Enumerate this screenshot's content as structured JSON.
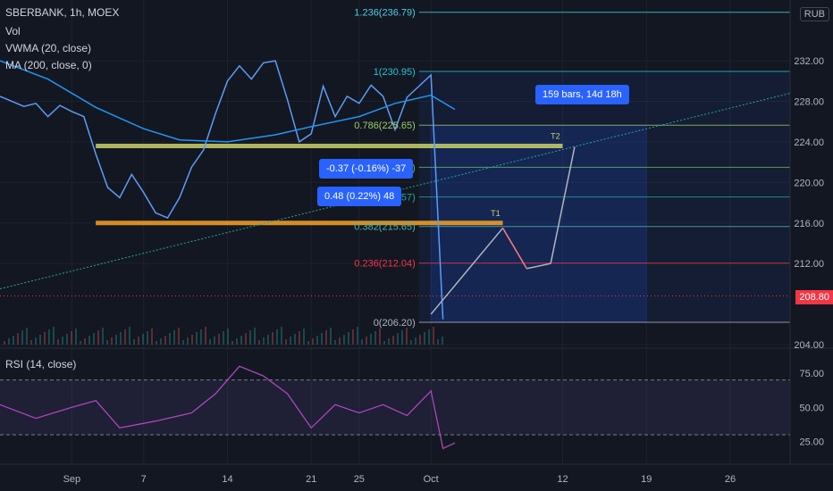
{
  "header": {
    "symbol_line": "SBERBANK, 1h, MOEX",
    "volume_label": "Vol",
    "vwma_label": "VWMA (20, close)",
    "ma_label": "MA (200, close, 0)",
    "currency": "RUB"
  },
  "annotations": {
    "range_box": "159 bars, 14d 18h",
    "measure_1": "-0.37 (-0.16%) -37",
    "measure_2": "0.48 (0.22%) 48",
    "target_1": "T1",
    "target_2": "T2"
  },
  "current_price": "208.80",
  "colors": {
    "background": "#131722",
    "price_line": "#5b9cf6",
    "ma_line": "#2196f3",
    "rsi_line": "#ab47bc",
    "support_band": "#f7a325",
    "resistance_band": "#c8d26a",
    "fib_box": "#2962ff",
    "price_tag": "#f23645",
    "arrow_up": "#b2b5be",
    "arrow_down": "#f77c80"
  },
  "chart_data": [
    {
      "type": "line",
      "panel": "price",
      "ylim": [
        204,
        238
      ],
      "y_ticks": [
        "232.00",
        "228.00",
        "224.00",
        "220.00",
        "216.00",
        "212.00",
        "204.00"
      ],
      "x_ticks": [
        "Sep",
        "7",
        "14",
        "21",
        "25",
        "Oct",
        "12",
        "19",
        "26"
      ],
      "x_tick_dates": [
        "2023-09-01",
        "2023-09-07",
        "2023-09-14",
        "2023-09-21",
        "2023-09-25",
        "2023-10-01",
        "2023-10-12",
        "2023-10-19",
        "2023-10-26"
      ],
      "xlim": [
        "2023-08-26",
        "2023-10-31"
      ],
      "series": [
        {
          "x": [
            "2023-08-26",
            "2023-08-28",
            "2023-08-29",
            "2023-08-30",
            "2023-08-31",
            "2023-09-01",
            "2023-09-02",
            "2023-09-03",
            "2023-09-04",
            "2023-09-05",
            "2023-09-06",
            "2023-09-07",
            "2023-09-08",
            "2023-09-09",
            "2023-09-10",
            "2023-09-11",
            "2023-09-12",
            "2023-09-13",
            "2023-09-14",
            "2023-09-15",
            "2023-09-16",
            "2023-09-17",
            "2023-09-18",
            "2023-09-19",
            "2023-09-20",
            "2023-09-21",
            "2023-09-22",
            "2023-09-23",
            "2023-09-24",
            "2023-09-25",
            "2023-09-26",
            "2023-09-27",
            "2023-09-28",
            "2023-09-29",
            "2023-09-30",
            "2023-10-01",
            "2023-10-02"
          ],
          "values": [
            228.5,
            227.5,
            227.8,
            226.5,
            227.6,
            227.0,
            226.5,
            222.8,
            219.5,
            218.5,
            220.8,
            219.0,
            217.0,
            216.5,
            218.5,
            221.5,
            223.2,
            226.8,
            230.0,
            231.5,
            230.2,
            231.8,
            232.0,
            228.2,
            224.0,
            224.8,
            229.5,
            226.5,
            228.5,
            227.8,
            229.6,
            228.5,
            225.2,
            228.4,
            229.5,
            230.6,
            206.5
          ]
        },
        {
          "x": [
            "2023-08-26",
            "2023-08-30",
            "2023-09-03",
            "2023-09-07",
            "2023-09-10",
            "2023-09-14",
            "2023-09-18",
            "2023-09-21",
            "2023-09-25",
            "2023-09-28",
            "2023-10-01",
            "2023-10-03"
          ],
          "values": [
            232.0,
            230.2,
            227.4,
            225.3,
            224.2,
            224.0,
            224.7,
            225.5,
            226.5,
            227.8,
            228.6,
            227.2
          ]
        }
      ],
      "fibonacci": [
        {
          "level": "1.236",
          "price": 236.79,
          "label": "1.236(236.79)"
        },
        {
          "level": "1",
          "price": 230.95,
          "label": "1(230.95)"
        },
        {
          "level": "0.786",
          "price": 225.65,
          "label": "0.786(225.65)"
        },
        {
          "level": "0.618",
          "price": 221.49,
          "label": "0.618(221.49)"
        },
        {
          "level": "0.5",
          "price": 218.57,
          "label": "0.5(218.57)"
        },
        {
          "level": "0.382",
          "price": 215.65,
          "label": "0.382(215.65)"
        },
        {
          "level": "0.236",
          "price": 212.04,
          "label": "0.236(212.04)"
        },
        {
          "level": "0",
          "price": 206.2,
          "label": "0(206.20)"
        }
      ],
      "horizontal_levels": [
        {
          "name": "resistance",
          "price": 223.6
        },
        {
          "name": "support",
          "price": 216.0
        }
      ],
      "projection_path": {
        "x": [
          "2023-10-01",
          "2023-10-07",
          "2023-10-09",
          "2023-10-11",
          "2023-10-13"
        ],
        "values": [
          207.0,
          215.5,
          211.5,
          212.0,
          223.5
        ]
      }
    },
    {
      "type": "line",
      "panel": "rsi",
      "title": "RSI (14, close)",
      "ylim": [
        15,
        90
      ],
      "y_ticks": [
        "75.00",
        "50.00",
        "25.00"
      ],
      "bands": [
        70,
        30
      ],
      "series": [
        {
          "x": [
            "2023-08-26",
            "2023-08-29",
            "2023-09-01",
            "2023-09-03",
            "2023-09-05",
            "2023-09-08",
            "2023-09-11",
            "2023-09-13",
            "2023-09-15",
            "2023-09-17",
            "2023-09-19",
            "2023-09-21",
            "2023-09-23",
            "2023-09-25",
            "2023-09-27",
            "2023-09-29",
            "2023-10-01",
            "2023-10-02",
            "2023-10-03"
          ],
          "values": [
            52,
            42,
            50,
            55,
            35,
            40,
            46,
            60,
            80,
            73,
            60,
            35,
            52,
            46,
            52,
            44,
            62,
            20,
            24
          ]
        }
      ]
    }
  ]
}
